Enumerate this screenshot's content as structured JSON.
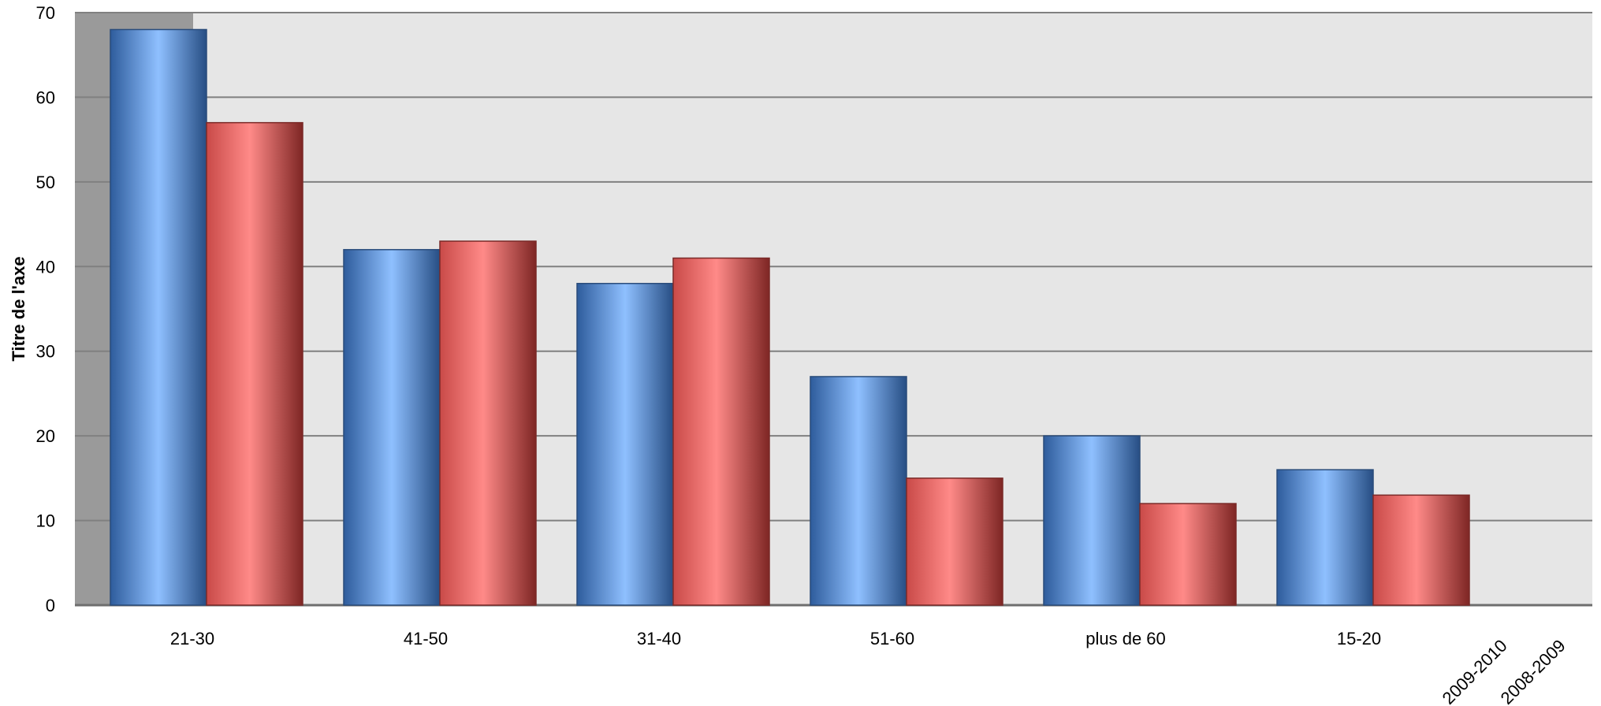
{
  "chart_data": {
    "type": "bar",
    "title": "",
    "xlabel": "",
    "ylabel": "Titre de l'axe",
    "ylim": [
      0,
      70
    ],
    "yticks": [
      0,
      10,
      20,
      30,
      40,
      50,
      60,
      70
    ],
    "grid": true,
    "legend": "none",
    "categories": [
      "21-30",
      "41-50",
      "31-40",
      "51-60",
      "plus de 60",
      "15-20"
    ],
    "series": [
      {
        "name": "2009-2010",
        "color": "#4F81BD",
        "values": [
          68,
          42,
          38,
          27,
          20,
          16
        ]
      },
      {
        "name": "2008-2009",
        "color": "#C0504D",
        "values": [
          57,
          43,
          41,
          15,
          12,
          13
        ]
      }
    ]
  }
}
